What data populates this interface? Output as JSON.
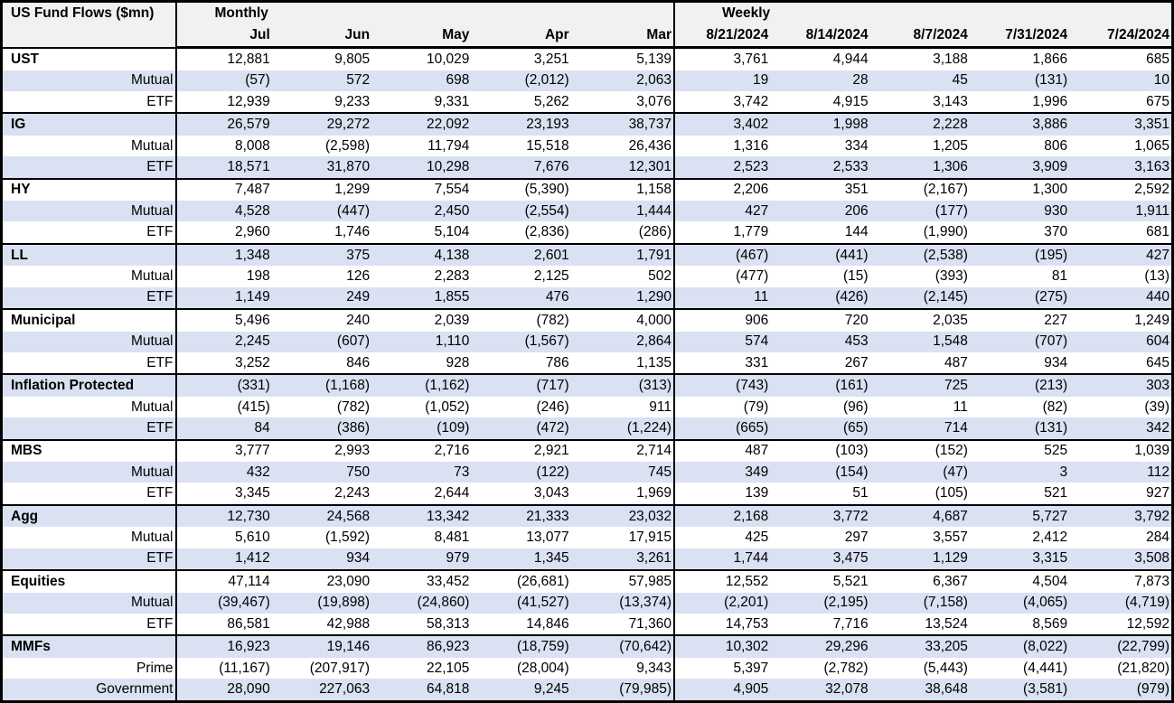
{
  "colors": {
    "stripe": "#D9E1F2",
    "header_bg": "#F1F1F1",
    "border": "#000000"
  },
  "chart_data": {
    "type": "table",
    "title": "US Fund Flows ($mn)",
    "column_groups": [
      {
        "label": "Monthly",
        "columns": [
          "Jul",
          "Jun",
          "May",
          "Apr",
          "Mar"
        ]
      },
      {
        "label": "Weekly",
        "columns": [
          "8/21/2024",
          "8/14/2024",
          "8/7/2024",
          "7/31/2024",
          "7/24/2024"
        ]
      }
    ],
    "groups": [
      {
        "label": "UST",
        "rows": [
          {
            "label": "UST",
            "values": [
              "12,881",
              "9,805",
              "10,029",
              "3,251",
              "5,139",
              "3,761",
              "4,944",
              "3,188",
              "1,866",
              "685"
            ]
          },
          {
            "label": "Mutual",
            "values": [
              "(57)",
              "572",
              "698",
              "(2,012)",
              "2,063",
              "19",
              "28",
              "45",
              "(131)",
              "10"
            ]
          },
          {
            "label": "ETF",
            "values": [
              "12,939",
              "9,233",
              "9,331",
              "5,262",
              "3,076",
              "3,742",
              "4,915",
              "3,143",
              "1,996",
              "675"
            ]
          }
        ]
      },
      {
        "label": "IG",
        "rows": [
          {
            "label": "IG",
            "values": [
              "26,579",
              "29,272",
              "22,092",
              "23,193",
              "38,737",
              "3,402",
              "1,998",
              "2,228",
              "3,886",
              "3,351"
            ]
          },
          {
            "label": "Mutual",
            "values": [
              "8,008",
              "(2,598)",
              "11,794",
              "15,518",
              "26,436",
              "1,316",
              "334",
              "1,205",
              "806",
              "1,065"
            ]
          },
          {
            "label": "ETF",
            "values": [
              "18,571",
              "31,870",
              "10,298",
              "7,676",
              "12,301",
              "2,523",
              "2,533",
              "1,306",
              "3,909",
              "3,163"
            ]
          }
        ]
      },
      {
        "label": "HY",
        "rows": [
          {
            "label": "HY",
            "values": [
              "7,487",
              "1,299",
              "7,554",
              "(5,390)",
              "1,158",
              "2,206",
              "351",
              "(2,167)",
              "1,300",
              "2,592"
            ]
          },
          {
            "label": "Mutual",
            "values": [
              "4,528",
              "(447)",
              "2,450",
              "(2,554)",
              "1,444",
              "427",
              "206",
              "(177)",
              "930",
              "1,911"
            ]
          },
          {
            "label": "ETF",
            "values": [
              "2,960",
              "1,746",
              "5,104",
              "(2,836)",
              "(286)",
              "1,779",
              "144",
              "(1,990)",
              "370",
              "681"
            ]
          }
        ]
      },
      {
        "label": "LL",
        "rows": [
          {
            "label": "LL",
            "values": [
              "1,348",
              "375",
              "4,138",
              "2,601",
              "1,791",
              "(467)",
              "(441)",
              "(2,538)",
              "(195)",
              "427"
            ]
          },
          {
            "label": "Mutual",
            "values": [
              "198",
              "126",
              "2,283",
              "2,125",
              "502",
              "(477)",
              "(15)",
              "(393)",
              "81",
              "(13)"
            ]
          },
          {
            "label": "ETF",
            "values": [
              "1,149",
              "249",
              "1,855",
              "476",
              "1,290",
              "11",
              "(426)",
              "(2,145)",
              "(275)",
              "440"
            ]
          }
        ]
      },
      {
        "label": "Municipal",
        "rows": [
          {
            "label": "Municipal",
            "values": [
              "5,496",
              "240",
              "2,039",
              "(782)",
              "4,000",
              "906",
              "720",
              "2,035",
              "227",
              "1,249"
            ]
          },
          {
            "label": "Mutual",
            "values": [
              "2,245",
              "(607)",
              "1,110",
              "(1,567)",
              "2,864",
              "574",
              "453",
              "1,548",
              "(707)",
              "604"
            ]
          },
          {
            "label": "ETF",
            "values": [
              "3,252",
              "846",
              "928",
              "786",
              "1,135",
              "331",
              "267",
              "487",
              "934",
              "645"
            ]
          }
        ]
      },
      {
        "label": "Inflation Protected",
        "rows": [
          {
            "label": "Inflation Protected",
            "values": [
              "(331)",
              "(1,168)",
              "(1,162)",
              "(717)",
              "(313)",
              "(743)",
              "(161)",
              "725",
              "(213)",
              "303"
            ]
          },
          {
            "label": "Mutual",
            "values": [
              "(415)",
              "(782)",
              "(1,052)",
              "(246)",
              "911",
              "(79)",
              "(96)",
              "11",
              "(82)",
              "(39)"
            ]
          },
          {
            "label": "ETF",
            "values": [
              "84",
              "(386)",
              "(109)",
              "(472)",
              "(1,224)",
              "(665)",
              "(65)",
              "714",
              "(131)",
              "342"
            ]
          }
        ]
      },
      {
        "label": "MBS",
        "rows": [
          {
            "label": "MBS",
            "values": [
              "3,777",
              "2,993",
              "2,716",
              "2,921",
              "2,714",
              "487",
              "(103)",
              "(152)",
              "525",
              "1,039"
            ]
          },
          {
            "label": "Mutual",
            "values": [
              "432",
              "750",
              "73",
              "(122)",
              "745",
              "349",
              "(154)",
              "(47)",
              "3",
              "112"
            ]
          },
          {
            "label": "ETF",
            "values": [
              "3,345",
              "2,243",
              "2,644",
              "3,043",
              "1,969",
              "139",
              "51",
              "(105)",
              "521",
              "927"
            ]
          }
        ]
      },
      {
        "label": "Agg",
        "rows": [
          {
            "label": "Agg",
            "values": [
              "12,730",
              "24,568",
              "13,342",
              "21,333",
              "23,032",
              "2,168",
              "3,772",
              "4,687",
              "5,727",
              "3,792"
            ]
          },
          {
            "label": "Mutual",
            "values": [
              "5,610",
              "(1,592)",
              "8,481",
              "13,077",
              "17,915",
              "425",
              "297",
              "3,557",
              "2,412",
              "284"
            ]
          },
          {
            "label": "ETF",
            "values": [
              "1,412",
              "934",
              "979",
              "1,345",
              "3,261",
              "1,744",
              "3,475",
              "1,129",
              "3,315",
              "3,508"
            ]
          }
        ]
      },
      {
        "label": "Equities",
        "rows": [
          {
            "label": "Equities",
            "values": [
              "47,114",
              "23,090",
              "33,452",
              "(26,681)",
              "57,985",
              "12,552",
              "5,521",
              "6,367",
              "4,504",
              "7,873"
            ]
          },
          {
            "label": "Mutual",
            "values": [
              "(39,467)",
              "(19,898)",
              "(24,860)",
              "(41,527)",
              "(13,374)",
              "(2,201)",
              "(2,195)",
              "(7,158)",
              "(4,065)",
              "(4,719)"
            ]
          },
          {
            "label": "ETF",
            "values": [
              "86,581",
              "42,988",
              "58,313",
              "14,846",
              "71,360",
              "14,753",
              "7,716",
              "13,524",
              "8,569",
              "12,592"
            ]
          }
        ]
      },
      {
        "label": "MMFs",
        "rows": [
          {
            "label": "MMFs",
            "values": [
              "16,923",
              "19,146",
              "86,923",
              "(18,759)",
              "(70,642)",
              "10,302",
              "29,296",
              "33,205",
              "(8,022)",
              "(22,799)"
            ]
          },
          {
            "label": "Prime",
            "values": [
              "(11,167)",
              "(207,917)",
              "22,105",
              "(28,004)",
              "9,343",
              "5,397",
              "(2,782)",
              "(5,443)",
              "(4,441)",
              "(21,820)"
            ]
          },
          {
            "label": "Government",
            "values": [
              "28,090",
              "227,063",
              "64,818",
              "9,245",
              "(79,985)",
              "4,905",
              "32,078",
              "38,648",
              "(3,581)",
              "(979)"
            ]
          }
        ]
      }
    ]
  }
}
